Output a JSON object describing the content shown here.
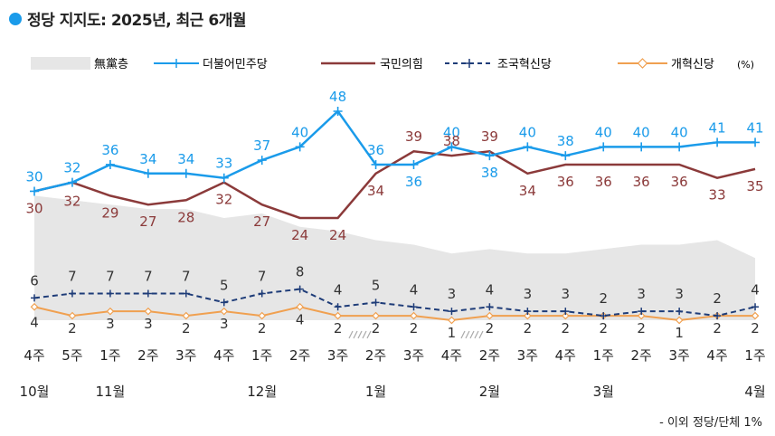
{
  "title": "정당 지지도: 2025년, 최근 6개월",
  "footnote": "- 이외 정당/단체 1%",
  "colors": {
    "accent": "#1a9bea",
    "undecided": "#e6e6e6",
    "democratic": "#1a9bea",
    "ppp": "#8b3a3a",
    "rebuilding": "#1e3c78",
    "reform": "#f0a050"
  },
  "chart_data": {
    "type": "line",
    "unit": "(%)",
    "categories": [
      "4주",
      "5주",
      "1주",
      "2주",
      "3주",
      "4주",
      "1주",
      "2주",
      "3주",
      "2주",
      "3주",
      "4주",
      "2주",
      "3주",
      "4주",
      "1주",
      "2주",
      "3주",
      "4주",
      "1주"
    ],
    "month_labels": [
      {
        "label": "10월",
        "index": 0
      },
      {
        "label": "11월",
        "index": 2
      },
      {
        "label": "12월",
        "index": 6
      },
      {
        "label": "1월",
        "index": 9
      },
      {
        "label": "2월",
        "index": 12
      },
      {
        "label": "3월",
        "index": 15
      },
      {
        "label": "4월",
        "index": 19
      }
    ],
    "series": [
      {
        "name": "無黨층",
        "style": "area",
        "values": [
          29,
          28,
          27,
          26,
          26,
          24,
          25,
          22,
          21,
          19,
          18,
          16,
          17,
          16,
          16,
          17,
          18,
          18,
          19,
          15
        ]
      },
      {
        "name": "더불어민주당",
        "style": "line",
        "values": [
          30,
          32,
          36,
          34,
          34,
          33,
          37,
          40,
          48,
          36,
          36,
          40,
          38,
          40,
          38,
          40,
          40,
          40,
          41,
          41
        ]
      },
      {
        "name": "국민의힘",
        "style": "line",
        "values": [
          30,
          32,
          29,
          27,
          28,
          32,
          27,
          24,
          24,
          34,
          39,
          38,
          39,
          34,
          36,
          36,
          36,
          36,
          33,
          35
        ]
      },
      {
        "name": "조국혁신당",
        "style": "dashed",
        "values": [
          6,
          7,
          7,
          7,
          7,
          5,
          7,
          8,
          4,
          5,
          4,
          3,
          4,
          3,
          3,
          2,
          3,
          3,
          2,
          4
        ]
      },
      {
        "name": "개혁신당",
        "style": "line",
        "values": [
          4,
          2,
          3,
          3,
          2,
          3,
          2,
          4,
          2,
          2,
          2,
          1,
          2,
          2,
          2,
          2,
          2,
          1,
          2,
          2
        ]
      }
    ],
    "ylim": [
      0,
      50
    ],
    "legend_position": "top"
  }
}
